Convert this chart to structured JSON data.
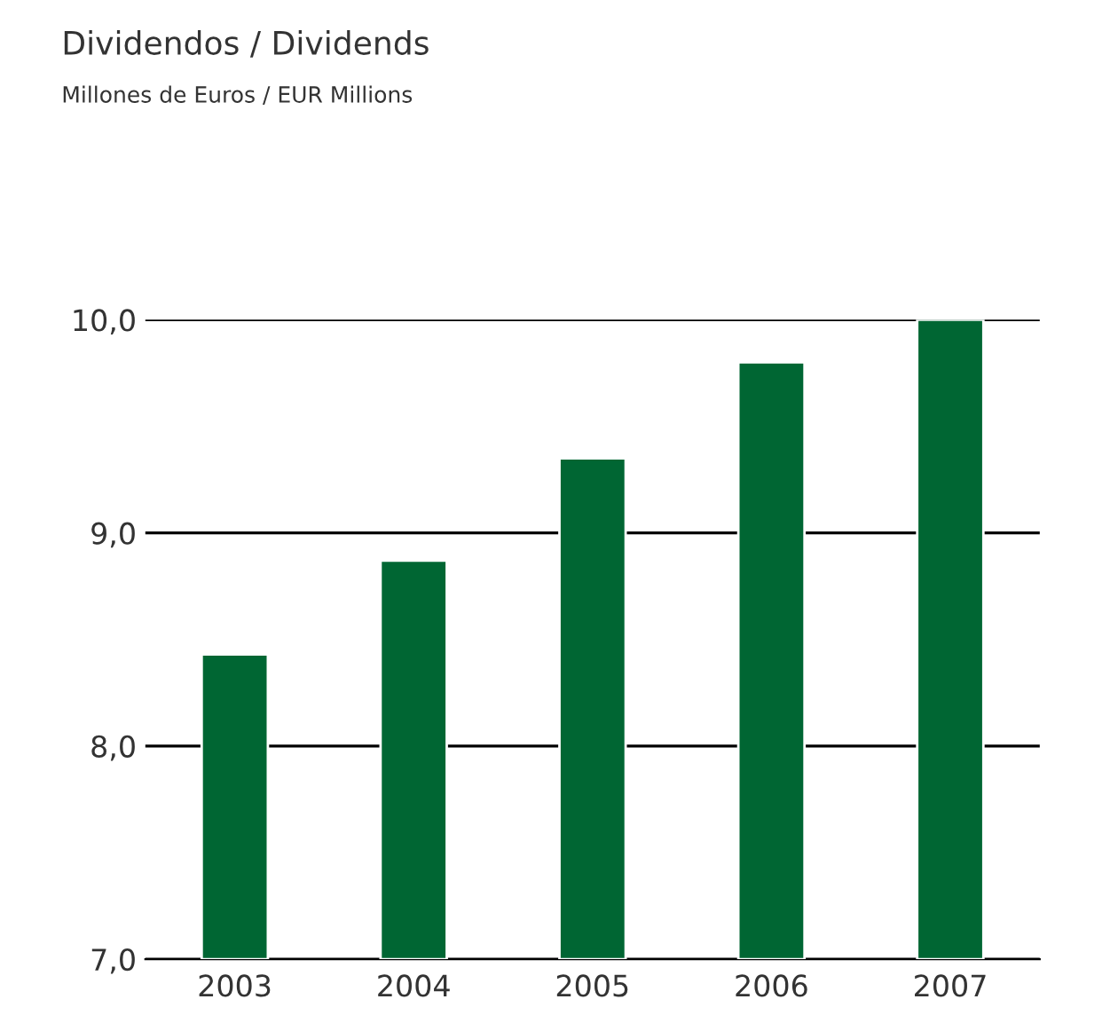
{
  "chart_data": {
    "type": "bar",
    "title": "Dividendos / Dividends",
    "subtitle": "Millones de Euros / EUR Millions",
    "categories": [
      "2003",
      "2004",
      "2005",
      "2006",
      "2007"
    ],
    "values": [
      8.43,
      8.87,
      9.35,
      9.8,
      10.0
    ],
    "color": "#006633",
    "ylim": [
      7.0,
      10.0
    ],
    "yticks": [
      {
        "value": 7.0,
        "label": "7,0"
      },
      {
        "value": 8.0,
        "label": "8,0"
      },
      {
        "value": 9.0,
        "label": "9,0"
      },
      {
        "value": 10.0,
        "label": "10,0"
      }
    ],
    "grid": "y"
  }
}
